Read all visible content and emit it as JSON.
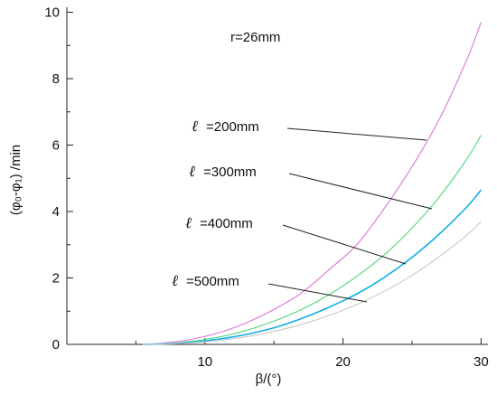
{
  "chart_data": {
    "type": "line",
    "xlabel": "β/(°)",
    "ylabel": "(φ₀-φ₁) /min",
    "xlim": [
      0,
      30
    ],
    "ylim": [
      0,
      10
    ],
    "xticks": [
      10,
      20,
      30
    ],
    "yticks": [
      0,
      2,
      4,
      6,
      8,
      10
    ],
    "annotation": "r=26mm",
    "series": [
      {
        "name": "ℓ =200mm",
        "label_symbol": "ℓ",
        "label_text": "=200mm",
        "color": "#e070d8",
        "x": [
          5.5,
          7,
          9,
          11,
          13,
          15,
          17,
          19,
          21,
          23,
          25,
          27,
          29,
          30
        ],
        "y": [
          0,
          0.04,
          0.15,
          0.35,
          0.65,
          1.05,
          1.55,
          2.25,
          3.0,
          4.1,
          5.35,
          6.8,
          8.6,
          9.7
        ]
      },
      {
        "name": "ℓ =300mm",
        "label_symbol": "ℓ",
        "label_text": "=300mm",
        "color": "#4fd67a",
        "x": [
          5.5,
          7,
          9,
          11,
          13,
          15,
          17,
          19,
          21,
          23,
          25,
          27,
          29,
          30
        ],
        "y": [
          0,
          0.02,
          0.09,
          0.22,
          0.42,
          0.7,
          1.05,
          1.5,
          2.05,
          2.7,
          3.5,
          4.45,
          5.6,
          6.3
        ]
      },
      {
        "name": "ℓ =400mm",
        "label_symbol": "ℓ",
        "label_text": "=400mm",
        "color": "#10aee8",
        "x": [
          5.5,
          7,
          9,
          11,
          13,
          15,
          17,
          19,
          21,
          23,
          25,
          27,
          29,
          30
        ],
        "y": [
          0,
          0.015,
          0.06,
          0.16,
          0.3,
          0.5,
          0.78,
          1.12,
          1.52,
          2.02,
          2.62,
          3.33,
          4.15,
          4.65
        ]
      },
      {
        "name": "ℓ =500mm",
        "label_symbol": "ℓ",
        "label_text": "=500mm",
        "color": "#c8c8c8",
        "x": [
          5.5,
          7,
          9,
          11,
          13,
          15,
          17,
          19,
          21,
          23,
          25,
          27,
          29,
          30
        ],
        "y": [
          0,
          0.01,
          0.045,
          0.12,
          0.23,
          0.39,
          0.6,
          0.87,
          1.2,
          1.6,
          2.08,
          2.65,
          3.3,
          3.7
        ]
      }
    ]
  }
}
